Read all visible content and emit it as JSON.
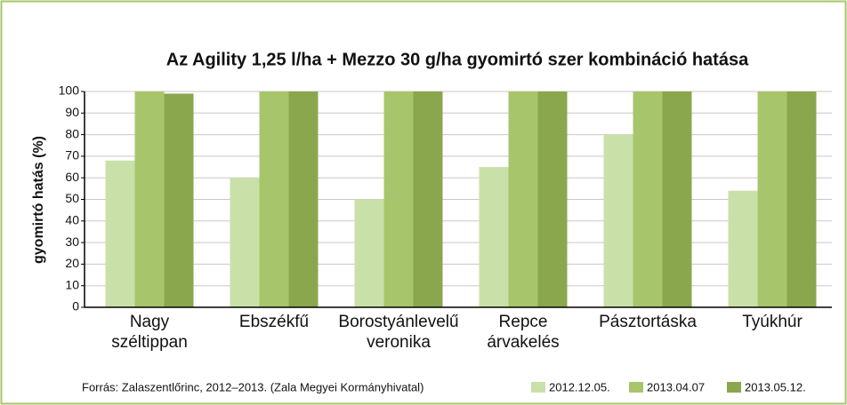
{
  "chart_data": {
    "type": "bar",
    "title": "Az Agility 1,25 l/ha + Mezzo 30 g/ha gyomirtó szer kombináció hatása",
    "y_label": "gyomirtó hatás (%)",
    "source": "Forrás: Zalaszentlőrinc, 2012–2013. (Zala Megyei Kormányhivatal)",
    "categories": [
      "Nagy széltippan",
      "Ebszékfű",
      "Borostyánlevelű veronika",
      "Repce árvakelés",
      "Pásztortáska",
      "Tyúkhúr"
    ],
    "series": [
      {
        "name": "2012.12.05.",
        "color": "#c9e1a8",
        "values": [
          68,
          60,
          50,
          65,
          80,
          54
        ]
      },
      {
        "name": "2013.04.07",
        "color": "#a7c66c",
        "values": [
          100,
          100,
          100,
          100,
          100,
          100
        ]
      },
      {
        "name": "2013.05.12.",
        "color": "#8aa74e",
        "values": [
          99,
          100,
          100,
          100,
          100,
          100
        ]
      }
    ],
    "ylim": [
      0,
      100
    ],
    "yticks": [
      0,
      10,
      20,
      30,
      40,
      50,
      60,
      70,
      80,
      90,
      100
    ],
    "grid": true,
    "legend": "bottom-right"
  }
}
